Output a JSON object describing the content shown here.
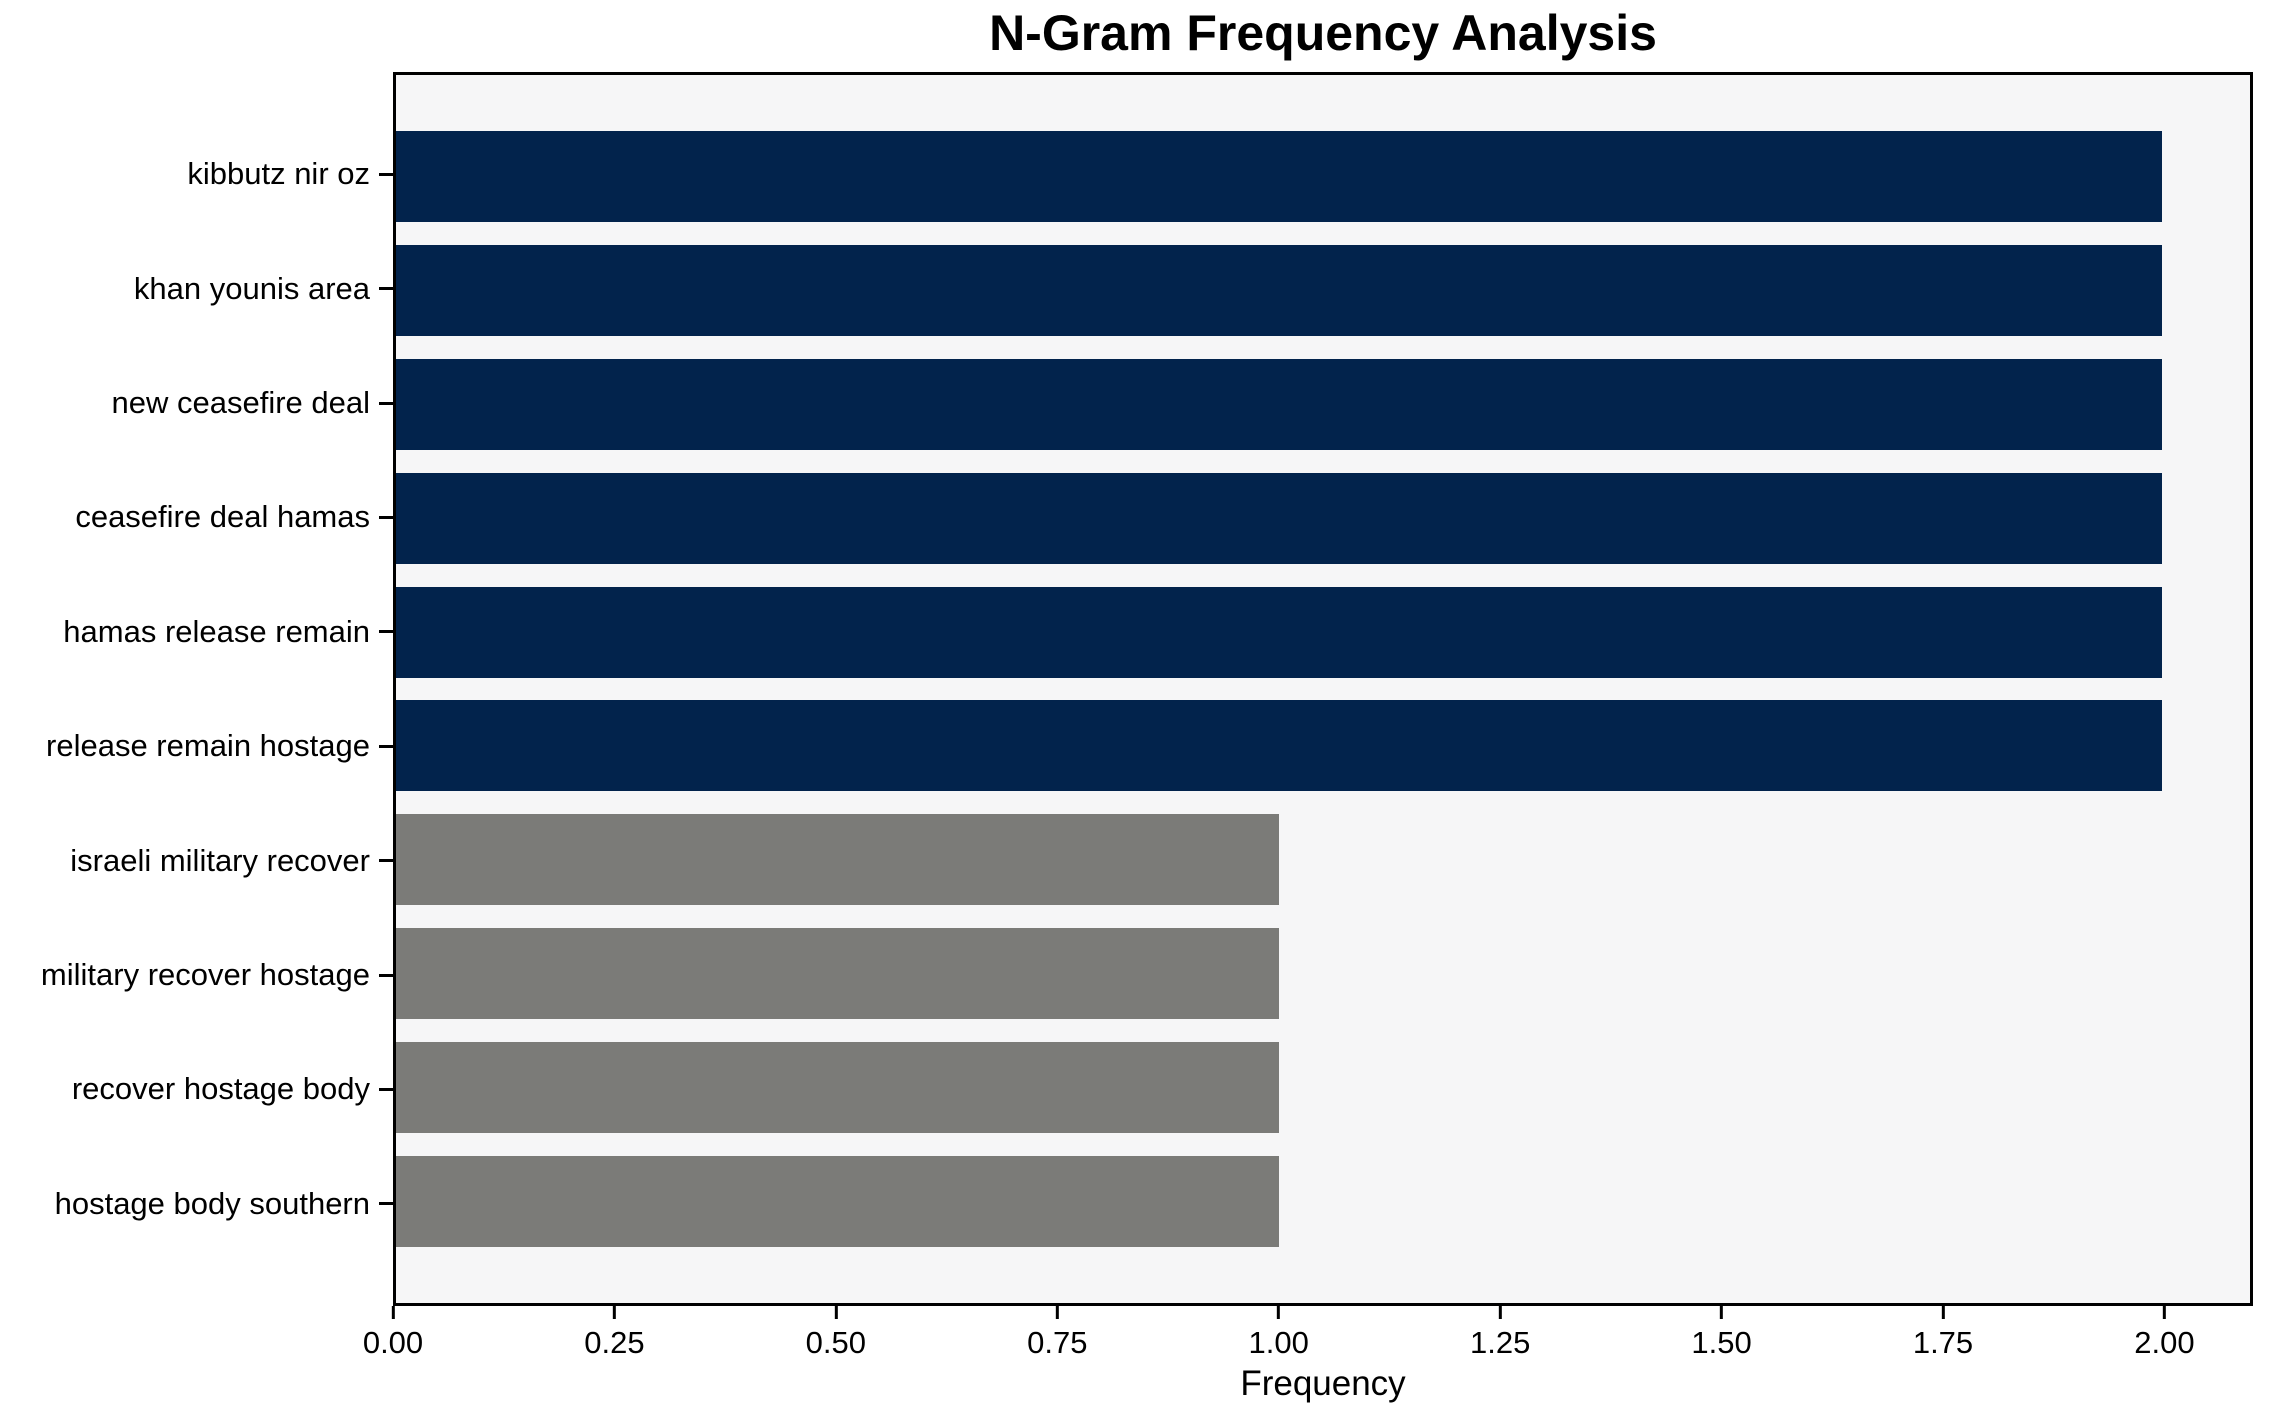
{
  "chart_data": {
    "type": "bar",
    "orientation": "horizontal",
    "title": "N-Gram Frequency Analysis",
    "xlabel": "Frequency",
    "ylabel": "",
    "categories": [
      "kibbutz nir oz",
      "khan younis area",
      "new ceasefire deal",
      "ceasefire deal hamas",
      "hamas release remain",
      "release remain hostage",
      "israeli military recover",
      "military recover hostage",
      "recover hostage body",
      "hostage body southern"
    ],
    "values": [
      2,
      2,
      2,
      2,
      2,
      2,
      1,
      1,
      1,
      1
    ],
    "bar_colors": [
      "#02234c",
      "#02234c",
      "#02234c",
      "#02234c",
      "#02234c",
      "#02234c",
      "#7b7b78",
      "#7b7b78",
      "#7b7b78",
      "#7b7b78"
    ],
    "xlim": [
      0,
      2.1
    ],
    "x_ticks": [
      0,
      0.25,
      0.5,
      0.75,
      1.0,
      1.25,
      1.5,
      1.75,
      2.0
    ],
    "x_tick_labels": [
      "0.00",
      "0.25",
      "0.50",
      "0.75",
      "1.00",
      "1.25",
      "1.50",
      "1.75",
      "2.00"
    ],
    "grid": false,
    "legend": null,
    "colors": {
      "bar_freq2": "#02234c",
      "bar_freq1": "#7b7b78",
      "plot_background": "#f6f6f7",
      "figure_background": "#ffffff",
      "spine": "#000000",
      "text": "#000000"
    }
  }
}
